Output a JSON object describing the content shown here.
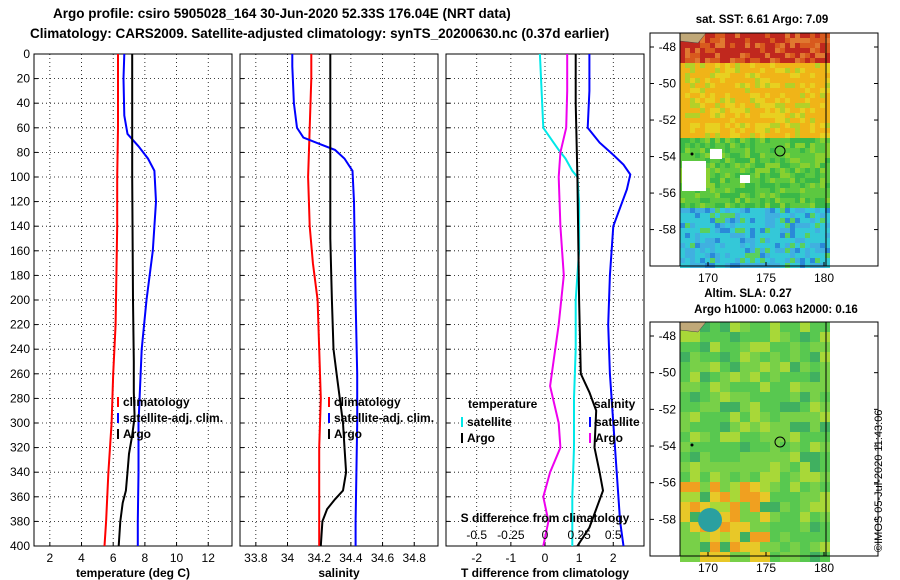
{
  "header": {
    "line1": "Argo profile: csiro 5905028_164 30-Jun-2020 52.33S 176.04E (NRT data)",
    "line2": "Climatology: CARS2009. Satellite-adjusted climatology: synTS_20200630.nc (0.37d earlier)"
  },
  "colors": {
    "argo": "#000000",
    "climatology": "#ff0000",
    "satellite": "#0000ff",
    "t_diff": "#00e8e8",
    "s_diff": "#ee00ee"
  },
  "chart_data": [
    {
      "type": "line",
      "title": "",
      "xlabel": "temperature (deg C)",
      "ylabel": "depth",
      "xlim": [
        1,
        13.5
      ],
      "ylim": [
        400,
        0
      ],
      "x_ticks": [
        2,
        4,
        6,
        8,
        10,
        12
      ],
      "y_ticks": [
        0,
        20,
        40,
        60,
        80,
        100,
        120,
        140,
        160,
        180,
        200,
        220,
        240,
        260,
        280,
        300,
        320,
        340,
        360,
        380,
        400
      ],
      "grid": true,
      "legend": [
        "climatology",
        "satellite-adj. clim.",
        "Argo"
      ],
      "series": [
        {
          "name": "climatology",
          "color": "#ff0000",
          "points": [
            [
              6.3,
              0
            ],
            [
              6.3,
              20
            ],
            [
              6.3,
              60
            ],
            [
              6.25,
              100
            ],
            [
              6.25,
              140
            ],
            [
              6.2,
              180
            ],
            [
              6.15,
              220
            ],
            [
              6.0,
              260
            ],
            [
              5.9,
              300
            ],
            [
              5.7,
              340
            ],
            [
              5.55,
              380
            ],
            [
              5.45,
              400
            ]
          ]
        },
        {
          "name": "satellite-adj. clim.",
          "color": "#0000ff",
          "points": [
            [
              6.7,
              0
            ],
            [
              6.65,
              20
            ],
            [
              6.7,
              50
            ],
            [
              6.9,
              65
            ],
            [
              7.6,
              75
            ],
            [
              8.2,
              85
            ],
            [
              8.6,
              95
            ],
            [
              8.7,
              120
            ],
            [
              8.5,
              160
            ],
            [
              8.1,
              200
            ],
            [
              7.8,
              240
            ],
            [
              7.7,
              270
            ],
            [
              7.6,
              300
            ],
            [
              7.6,
              340
            ],
            [
              7.55,
              380
            ],
            [
              7.55,
              400
            ]
          ]
        },
        {
          "name": "Argo",
          "color": "#000000",
          "points": [
            [
              7.2,
              0
            ],
            [
              7.2,
              100
            ],
            [
              7.25,
              200
            ],
            [
              7.3,
              250
            ],
            [
              7.3,
              275
            ],
            [
              7.35,
              295
            ],
            [
              7.2,
              310
            ],
            [
              7.0,
              325
            ],
            [
              6.9,
              340
            ],
            [
              6.8,
              355
            ],
            [
              6.6,
              365
            ],
            [
              6.45,
              380
            ],
            [
              6.35,
              400
            ]
          ]
        }
      ]
    },
    {
      "type": "line",
      "title": "",
      "xlabel": "salinity",
      "ylabel": "",
      "xlim": [
        33.7,
        34.95
      ],
      "ylim": [
        400,
        0
      ],
      "x_ticks": [
        33.8,
        34,
        34.2,
        34.4,
        34.6,
        34.8
      ],
      "grid": true,
      "legend": [
        "climatology",
        "satellite-adj. clim.",
        "Argo"
      ],
      "series": [
        {
          "name": "climatology",
          "color": "#ff0000",
          "points": [
            [
              34.15,
              0
            ],
            [
              34.15,
              20
            ],
            [
              34.14,
              60
            ],
            [
              34.13,
              100
            ],
            [
              34.14,
              140
            ],
            [
              34.16,
              170
            ],
            [
              34.19,
              200
            ],
            [
              34.2,
              240
            ],
            [
              34.21,
              280
            ],
            [
              34.2,
              320
            ],
            [
              34.2,
              360
            ],
            [
              34.2,
              400
            ]
          ]
        },
        {
          "name": "satellite-adj. clim.",
          "color": "#0000ff",
          "points": [
            [
              34.03,
              0
            ],
            [
              34.03,
              10
            ],
            [
              34.04,
              40
            ],
            [
              34.06,
              60
            ],
            [
              34.1,
              68
            ],
            [
              34.2,
              73
            ],
            [
              34.3,
              78
            ],
            [
              34.36,
              85
            ],
            [
              34.41,
              95
            ],
            [
              34.42,
              120
            ],
            [
              34.43,
              200
            ],
            [
              34.44,
              260
            ],
            [
              34.44,
              300
            ],
            [
              34.43,
              380
            ],
            [
              34.43,
              400
            ]
          ]
        },
        {
          "name": "Argo",
          "color": "#000000",
          "points": [
            [
              34.27,
              0
            ],
            [
              34.27,
              150
            ],
            [
              34.28,
              200
            ],
            [
              34.29,
              240
            ],
            [
              34.31,
              260
            ],
            [
              34.33,
              280
            ],
            [
              34.35,
              300
            ],
            [
              34.36,
              320
            ],
            [
              34.37,
              340
            ],
            [
              34.35,
              355
            ],
            [
              34.3,
              362
            ],
            [
              34.25,
              370
            ],
            [
              34.22,
              380
            ],
            [
              34.21,
              400
            ]
          ]
        }
      ]
    },
    {
      "type": "line",
      "title": "",
      "xlabel": "T difference from climatology",
      "xlabel_top": "S difference from climatology",
      "ylabel": "",
      "xlim": [
        -2.9,
        2.9
      ],
      "ylim": [
        400,
        0
      ],
      "x_ticks": [
        -2,
        -1,
        0,
        1,
        2
      ],
      "x_ticks_top": [
        "-0.5",
        "-0.25",
        "0",
        "0.25",
        "0.5"
      ],
      "grid": true,
      "legend_temperature": {
        "title": "temperature",
        "items": [
          "satellite",
          "Argo"
        ]
      },
      "legend_salinity": {
        "title": "salinity",
        "items": [
          "satellite",
          "Argo"
        ]
      },
      "series": [
        {
          "name": "satellite (temperature)",
          "color": "#00e8e8",
          "points": [
            [
              -0.15,
              0
            ],
            [
              -0.1,
              30
            ],
            [
              -0.05,
              60
            ],
            [
              0.2,
              70
            ],
            [
              0.4,
              78
            ],
            [
              0.6,
              85
            ],
            [
              0.8,
              95
            ],
            [
              0.95,
              100
            ],
            [
              1.0,
              120
            ],
            [
              1.0,
              160
            ],
            [
              0.9,
              200
            ],
            [
              0.9,
              240
            ],
            [
              0.85,
              280
            ],
            [
              0.85,
              320
            ],
            [
              0.8,
              360
            ],
            [
              0.8,
              400
            ]
          ]
        },
        {
          "name": "Argo (temperature)",
          "color": "#000000",
          "points": [
            [
              0.9,
              0
            ],
            [
              0.9,
              40
            ],
            [
              0.95,
              100
            ],
            [
              1.0,
              200
            ],
            [
              1.05,
              260
            ],
            [
              1.3,
              275
            ],
            [
              1.5,
              290
            ],
            [
              1.45,
              320
            ],
            [
              1.6,
              340
            ],
            [
              1.7,
              355
            ],
            [
              1.5,
              370
            ],
            [
              1.3,
              385
            ],
            [
              0.95,
              400
            ]
          ]
        },
        {
          "name": "satellite (salinity)",
          "color": "#0000ff",
          "points": [
            [
              1.3,
              0
            ],
            [
              1.3,
              30
            ],
            [
              1.25,
              60
            ],
            [
              1.6,
              72
            ],
            [
              2.0,
              82
            ],
            [
              2.3,
              90
            ],
            [
              2.5,
              98
            ],
            [
              2.4,
              110
            ],
            [
              2.0,
              140
            ],
            [
              1.9,
              180
            ],
            [
              1.85,
              220
            ],
            [
              1.9,
              260
            ],
            [
              2.0,
              300
            ],
            [
              2.1,
              340
            ],
            [
              2.2,
              380
            ],
            [
              2.3,
              400
            ]
          ]
        },
        {
          "name": "Argo (salinity)",
          "color": "#ee00ee",
          "points": [
            [
              0.65,
              0
            ],
            [
              0.65,
              30
            ],
            [
              0.62,
              60
            ],
            [
              0.45,
              80
            ],
            [
              0.4,
              100
            ],
            [
              0.45,
              140
            ],
            [
              0.55,
              180
            ],
            [
              0.4,
              220
            ],
            [
              0.25,
              250
            ],
            [
              0.15,
              270
            ],
            [
              0.4,
              300
            ],
            [
              0.45,
              320
            ],
            [
              0.15,
              340
            ],
            [
              -0.05,
              360
            ],
            [
              0.1,
              380
            ],
            [
              -0.05,
              400
            ]
          ]
        }
      ]
    }
  ],
  "map_sst": {
    "title": "sat. SST: 6.61 Argo: 7.09",
    "y_ticks": [
      "-48",
      "-50",
      "-52",
      "-54",
      "-56",
      "-58"
    ],
    "x_ticks": [
      "170",
      "175",
      "180"
    ]
  },
  "map_sla": {
    "title1": "Altim. SLA: 0.27",
    "title2": "Argo h1000: 0.063 h2000: 0.16",
    "y_ticks": [
      "-48",
      "-50",
      "-52",
      "-54",
      "-56",
      "-58"
    ],
    "x_ticks": [
      "170",
      "175",
      "180"
    ]
  },
  "credit": "©IMOS 05-Jul-2020 11:43:06"
}
